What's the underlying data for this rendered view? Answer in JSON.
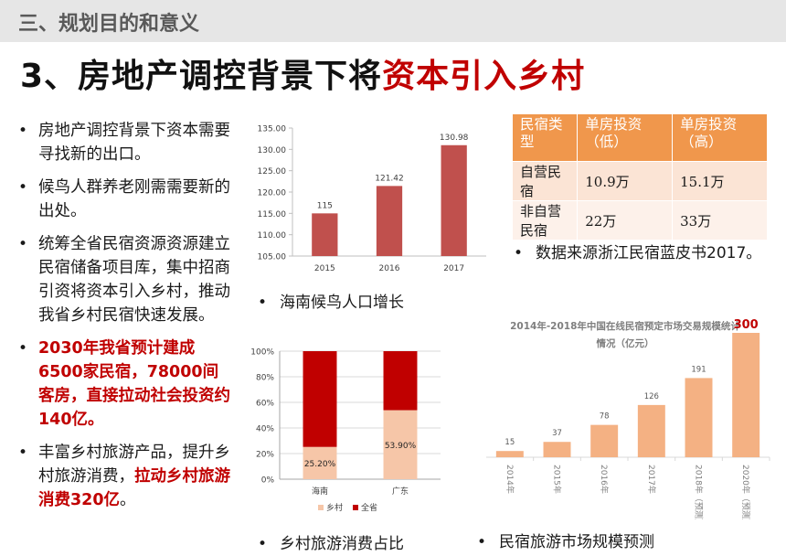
{
  "section_title": "三、规划目的和意义",
  "main_title": {
    "prefix": "3、房地产调控背景下将",
    "highlight": "资本引入乡村"
  },
  "bullets": [
    {
      "segments": [
        {
          "text": "房地产调控背景下资本需要寻找新的出口。",
          "red": false
        }
      ]
    },
    {
      "segments": [
        {
          "text": "候鸟人群养老刚需需要新的出处。",
          "red": false
        }
      ]
    },
    {
      "segments": [
        {
          "text": "统筹全省民宿资源资源建立民宿储备项目库，集中招商引资将资本引入乡村，推动我省乡村民宿快速发展。",
          "red": false
        }
      ]
    },
    {
      "segments": [
        {
          "text": "2030年我省预计建成6500家民宿，78000间客房，直接拉动社会投资约140亿。",
          "red": true
        }
      ]
    },
    {
      "segments": [
        {
          "text": "丰富乡村旅游产品，提升乡村旅游消费，",
          "red": false
        },
        {
          "text": "拉动乡村旅游消费320亿",
          "red": true
        },
        {
          "text": "。",
          "red": false
        }
      ]
    }
  ],
  "captions": {
    "chart1": "海南候鸟人口增长",
    "chart2": "乡村旅游消费占比",
    "chart3": "民宿旅游市场规模预测",
    "table": "数据来源浙江民宿蓝皮书2017。"
  },
  "bullet_symbol": "•",
  "table": {
    "headers": [
      "民宿类型",
      "单房投资（低）",
      "单房投资（高）"
    ],
    "rows": [
      [
        "自营民宿",
        "10.9万",
        "15.1万"
      ],
      [
        "非自营民宿",
        "22万",
        "33万"
      ]
    ]
  },
  "colors": {
    "section_bar": "#e6e6e6",
    "accent_red": "#c00000",
    "bar_red": "#c0504d",
    "pink": "#f6c6a8",
    "peach": "#f4b183",
    "table_header": "#f0974c"
  },
  "chart_data": [
    {
      "type": "bar",
      "categories": [
        "2015",
        "2016",
        "2017"
      ],
      "values": [
        115,
        121.42,
        130.98
      ],
      "value_labels": [
        "115",
        "121.42",
        "130.98"
      ],
      "ylim": [
        105,
        135
      ],
      "yticks": [
        "105.00",
        "110.00",
        "115.00",
        "120.00",
        "125.00",
        "130.00",
        "135.00"
      ],
      "grid": false
    },
    {
      "type": "bar",
      "stacked": true,
      "percent": true,
      "categories": [
        "海南",
        "广东"
      ],
      "series": [
        {
          "name": "乡村",
          "values": [
            25.2,
            53.9
          ],
          "labels": [
            "25.20%",
            "53.90%"
          ]
        },
        {
          "name": "全省",
          "values": [
            74.8,
            46.1
          ]
        }
      ],
      "ylim": [
        0,
        100
      ],
      "yticks": [
        "0%",
        "20%",
        "40%",
        "60%",
        "80%",
        "100%"
      ],
      "legend": "bottom",
      "grid": true
    },
    {
      "type": "bar",
      "title": "2014年-2018年中国在线民宿预定市场交易规模统计情况（亿元）",
      "categories": [
        "2014年",
        "2015年",
        "2016年",
        "2017年",
        "2018年（预测）",
        "2020年（预测）"
      ],
      "values": [
        15,
        37,
        78,
        126,
        191,
        300
      ],
      "value_labels": [
        "15",
        "37",
        "78",
        "126",
        "191",
        "300"
      ],
      "ylim": [
        0,
        300
      ],
      "grid": false
    }
  ]
}
